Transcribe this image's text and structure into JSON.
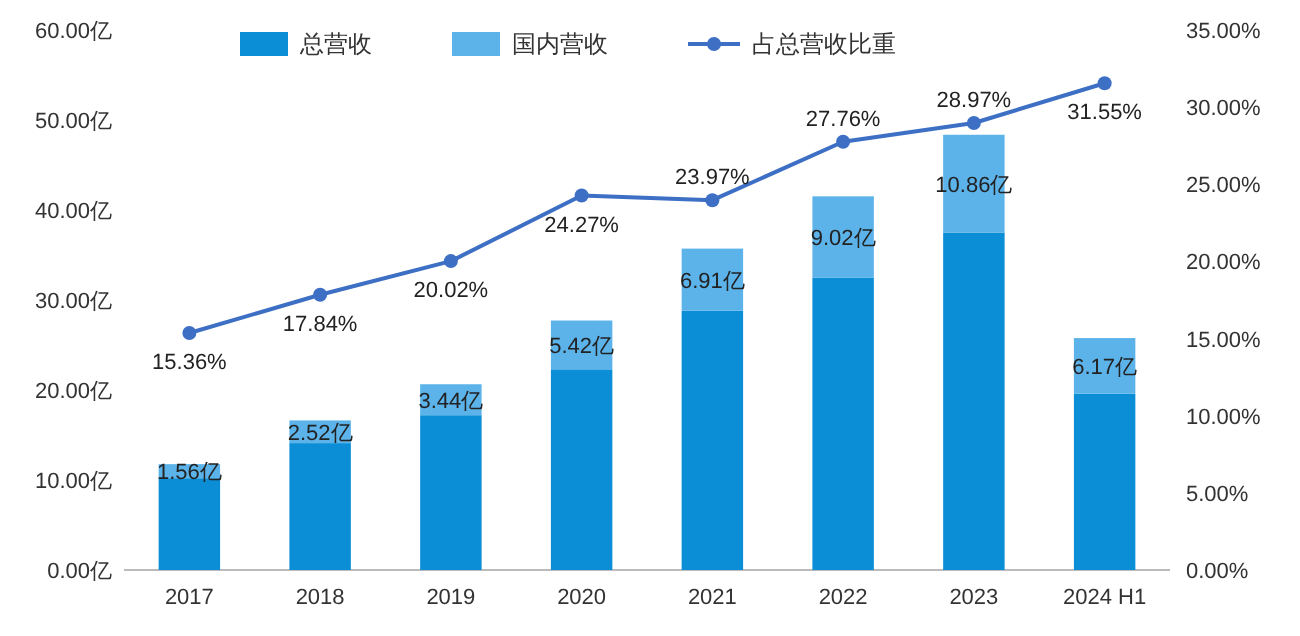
{
  "chart_data": {
    "type": "bar",
    "stacked": true,
    "legend": "top",
    "grid": false,
    "categories": [
      "2017",
      "2018",
      "2019",
      "2020",
      "2021",
      "2022",
      "2023",
      "2024 H1"
    ],
    "series": [
      {
        "name": "总营收",
        "color": "#0b8ed6",
        "values": [
          10.2,
          14.1,
          17.2,
          22.3,
          28.8,
          32.5,
          37.5,
          19.6
        ]
      },
      {
        "name": "国内营收",
        "color": "#5cb3ea",
        "values": [
          1.56,
          2.52,
          3.44,
          5.42,
          6.91,
          9.02,
          10.86,
          6.17
        ],
        "value_labels": [
          "1.56亿",
          "2.52亿",
          "3.44亿",
          "5.42亿",
          "6.91亿",
          "9.02亿",
          "10.86亿",
          "6.17亿"
        ]
      },
      {
        "name": "占总营收比重",
        "type": "line",
        "axis": "y2",
        "color": "#3d6fc4",
        "marker": "circle",
        "values": [
          15.36,
          17.84,
          20.02,
          24.27,
          23.97,
          27.76,
          28.97,
          31.55
        ],
        "value_labels": [
          "15.36%",
          "17.84%",
          "20.02%",
          "24.27%",
          "23.97%",
          "27.76%",
          "28.97%",
          "31.55%"
        ]
      }
    ],
    "ylim": [
      0,
      60
    ],
    "yticks": [
      {
        "value": 0,
        "label": "0.00亿"
      },
      {
        "value": 10,
        "label": "10.00亿"
      },
      {
        "value": 20,
        "label": "20.00亿"
      },
      {
        "value": 30,
        "label": "30.00亿"
      },
      {
        "value": 40,
        "label": "40.00亿"
      },
      {
        "value": 50,
        "label": "50.00亿"
      },
      {
        "value": 60,
        "label": "60.00亿"
      }
    ],
    "y2lim": [
      0,
      35
    ],
    "y2ticks": [
      {
        "value": 0,
        "label": "0.00%"
      },
      {
        "value": 5,
        "label": "5.00%"
      },
      {
        "value": 10,
        "label": "10.00%"
      },
      {
        "value": 15,
        "label": "15.00%"
      },
      {
        "value": 20,
        "label": "20.00%"
      },
      {
        "value": 25,
        "label": "25.00%"
      },
      {
        "value": 30,
        "label": "30.00%"
      },
      {
        "value": 35,
        "label": "35.00%"
      }
    ]
  }
}
